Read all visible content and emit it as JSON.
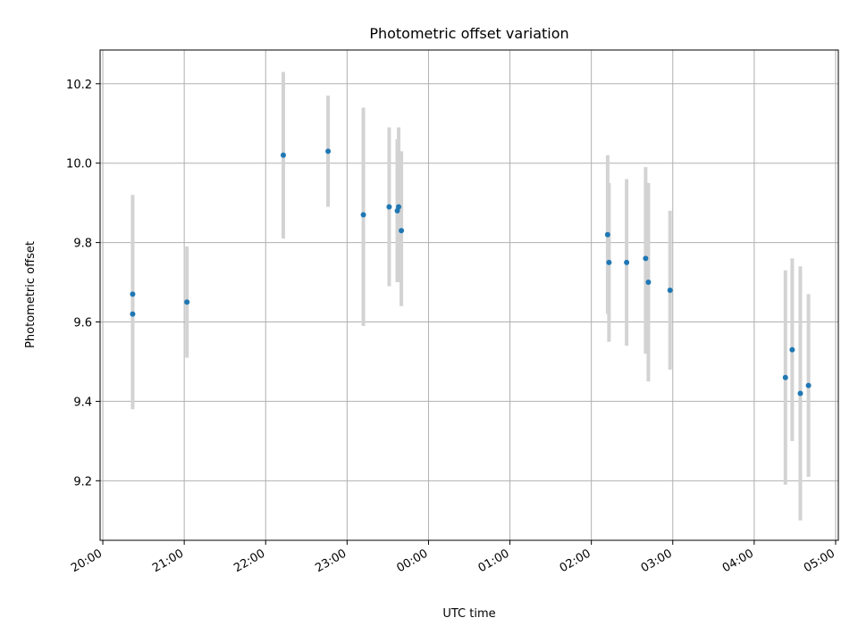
{
  "chart_data": {
    "type": "scatter",
    "title": "Photometric offset variation",
    "xlabel": "UTC time",
    "ylabel": "Photometric offset",
    "grid": true,
    "x_axis_kind": "time-of-day",
    "xlim": [
      "19:58",
      "05:02"
    ],
    "ylim": [
      9.05,
      10.285
    ],
    "xticks": [
      "20:00",
      "21:00",
      "22:00",
      "23:00",
      "00:00",
      "01:00",
      "02:00",
      "03:00",
      "04:00",
      "05:00"
    ],
    "yticks": [
      "9.2",
      "9.4",
      "9.6",
      "9.8",
      "10.0",
      "10.2"
    ],
    "ytick_values": [
      9.2,
      9.4,
      9.6,
      9.8,
      10.0,
      10.2
    ],
    "marker_color": "#1f77b4",
    "errorbar_color": "#d3d3d3",
    "points": [
      {
        "time": "20:22",
        "y": 9.67,
        "yerr_low": 9.42,
        "yerr_high": 9.92
      },
      {
        "time": "20:22",
        "y": 9.62,
        "yerr_low": 9.38,
        "yerr_high": 9.87
      },
      {
        "time": "21:02",
        "y": 9.65,
        "yerr_low": 9.51,
        "yerr_high": 9.79
      },
      {
        "time": "22:13",
        "y": 10.02,
        "yerr_low": 9.81,
        "yerr_high": 10.23
      },
      {
        "time": "22:46",
        "y": 10.03,
        "yerr_low": 9.89,
        "yerr_high": 10.17
      },
      {
        "time": "23:12",
        "y": 9.87,
        "yerr_low": 9.59,
        "yerr_high": 10.14
      },
      {
        "time": "23:31",
        "y": 9.89,
        "yerr_low": 9.69,
        "yerr_high": 10.09
      },
      {
        "time": "23:37",
        "y": 9.88,
        "yerr_low": 9.7,
        "yerr_high": 10.06
      },
      {
        "time": "23:38",
        "y": 9.89,
        "yerr_low": 9.7,
        "yerr_high": 10.09
      },
      {
        "time": "23:40",
        "y": 9.83,
        "yerr_low": 9.64,
        "yerr_high": 10.03
      },
      {
        "time": "02:12",
        "y": 9.82,
        "yerr_low": 9.62,
        "yerr_high": 10.02
      },
      {
        "time": "02:13",
        "y": 9.75,
        "yerr_low": 9.55,
        "yerr_high": 9.95
      },
      {
        "time": "02:26",
        "y": 9.75,
        "yerr_low": 9.54,
        "yerr_high": 9.96
      },
      {
        "time": "02:40",
        "y": 9.76,
        "yerr_low": 9.52,
        "yerr_high": 9.99
      },
      {
        "time": "02:42",
        "y": 9.7,
        "yerr_low": 9.45,
        "yerr_high": 9.95
      },
      {
        "time": "02:58",
        "y": 9.68,
        "yerr_low": 9.48,
        "yerr_high": 9.88
      },
      {
        "time": "04:23",
        "y": 9.46,
        "yerr_low": 9.19,
        "yerr_high": 9.73
      },
      {
        "time": "04:28",
        "y": 9.53,
        "yerr_low": 9.3,
        "yerr_high": 9.76
      },
      {
        "time": "04:34",
        "y": 9.42,
        "yerr_low": 9.1,
        "yerr_high": 9.74
      },
      {
        "time": "04:40",
        "y": 9.44,
        "yerr_low": 9.21,
        "yerr_high": 9.67
      }
    ]
  }
}
